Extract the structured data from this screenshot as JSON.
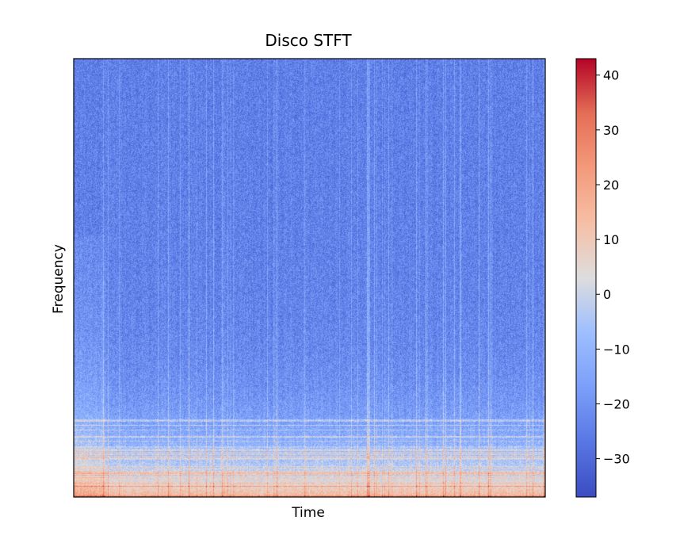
{
  "chart_data": {
    "type": "heatmap",
    "title": "Disco STFT",
    "xlabel": "Time",
    "ylabel": "Frequency",
    "x_ticks_visible": false,
    "y_ticks_visible": false,
    "colormap": "coolwarm",
    "colorbar": {
      "range": [
        -37,
        43
      ],
      "ticks": [
        40,
        30,
        20,
        10,
        0,
        -10,
        -20,
        -30
      ],
      "tick_labels": [
        "40",
        "30",
        "20",
        "10",
        "0",
        "−10",
        "−20",
        "−30"
      ],
      "colors": {
        "low": "#3b4cc0",
        "mid": "#dddddd",
        "high": "#b40426"
      }
    },
    "grid": false
  }
}
